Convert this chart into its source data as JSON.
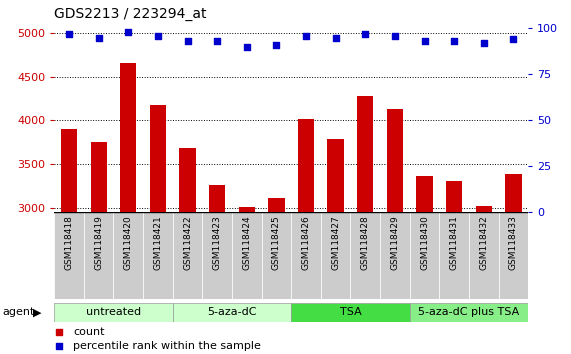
{
  "title": "GDS2213 / 223294_at",
  "samples": [
    "GSM118418",
    "GSM118419",
    "GSM118420",
    "GSM118421",
    "GSM118422",
    "GSM118423",
    "GSM118424",
    "GSM118425",
    "GSM118426",
    "GSM118427",
    "GSM118428",
    "GSM118429",
    "GSM118430",
    "GSM118431",
    "GSM118432",
    "GSM118433"
  ],
  "counts": [
    3900,
    3750,
    4650,
    4170,
    3680,
    3260,
    3010,
    3110,
    4010,
    3790,
    4280,
    4130,
    3360,
    3310,
    3020,
    3390
  ],
  "percentiles": [
    97,
    95,
    98,
    96,
    93,
    93,
    90,
    91,
    96,
    95,
    97,
    96,
    93,
    93,
    92,
    94
  ],
  "ylim_left": [
    2950,
    5050
  ],
  "ylim_right": [
    0,
    100
  ],
  "yticks_left": [
    3000,
    3500,
    4000,
    4500,
    5000
  ],
  "yticks_right": [
    0,
    25,
    50,
    75,
    100
  ],
  "groups": [
    {
      "label": "untreated",
      "start": 0,
      "end": 4,
      "color": "#ccffcc"
    },
    {
      "label": "5-aza-dC",
      "start": 4,
      "end": 8,
      "color": "#ccffcc"
    },
    {
      "label": "TSA",
      "start": 8,
      "end": 12,
      "color": "#44dd44"
    },
    {
      "label": "5-aza-dC plus TSA",
      "start": 12,
      "end": 16,
      "color": "#88ee88"
    }
  ],
  "bar_color": "#cc0000",
  "dot_color": "#0000cc",
  "left_tick_color": "#cc0000",
  "right_tick_color": "#0000cc",
  "bg_color": "#ffffff",
  "plot_bg_color": "#ffffff",
  "xtick_bg_color": "#cccccc",
  "agent_label": "agent",
  "legend_count_label": "count",
  "legend_percentile_label": "percentile rank within the sample",
  "group_border_color": "#999999",
  "title_fontsize": 10,
  "tick_fontsize": 8,
  "sample_fontsize": 6.5,
  "group_fontsize": 8,
  "legend_fontsize": 8
}
